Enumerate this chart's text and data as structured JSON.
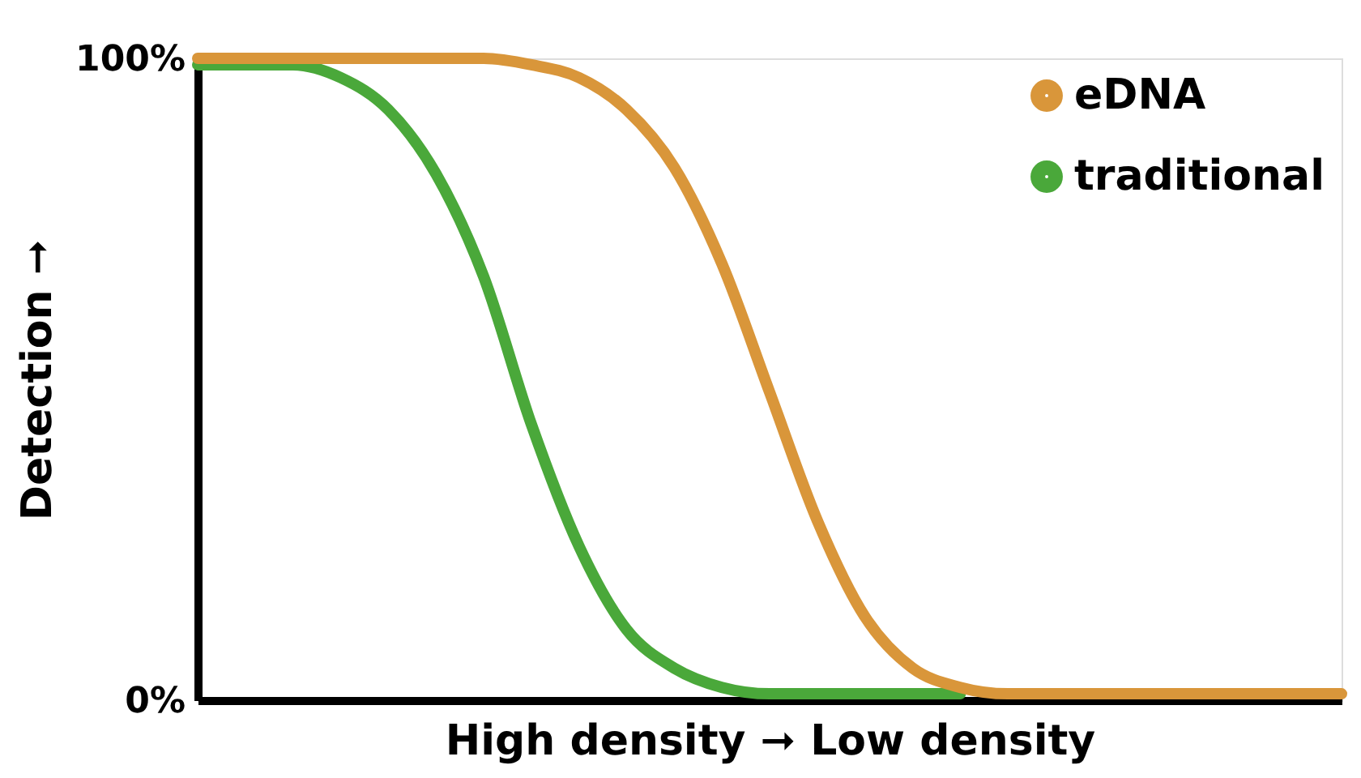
{
  "chart_data": {
    "type": "line",
    "xlabel": "High density ➞ Low density",
    "ylabel": "Detection ➞",
    "categories": [
      null,
      null,
      null,
      null,
      null,
      null,
      null,
      null,
      null,
      null,
      null,
      null,
      null,
      null,
      null,
      null,
      null,
      null,
      null,
      null,
      null,
      null,
      null,
      null,
      null
    ],
    "series": [
      {
        "name": "eDNA",
        "color": "#d9963a",
        "values": [
          100,
          100,
          100,
          100,
          100,
          100,
          100,
          99,
          97,
          92,
          83,
          68,
          48,
          28,
          13,
          5,
          2,
          1,
          1,
          1,
          1,
          1,
          1,
          1,
          1
        ]
      },
      {
        "name": "traditional",
        "color": "#4aa83a",
        "values": [
          99,
          99,
          99,
          97,
          92,
          82,
          66,
          43,
          24,
          11,
          5,
          2,
          1,
          1,
          1,
          1,
          1,
          null,
          null,
          null,
          null,
          null,
          null,
          null,
          null
        ]
      }
    ],
    "ylim": [
      0,
      100
    ],
    "yticks": [
      {
        "value": 0,
        "label": "0%"
      },
      {
        "value": 100,
        "label": "100%"
      }
    ],
    "tick_labels": "y",
    "grid": false,
    "legend": "top right",
    "marker": "none",
    "line_style": "solid"
  }
}
